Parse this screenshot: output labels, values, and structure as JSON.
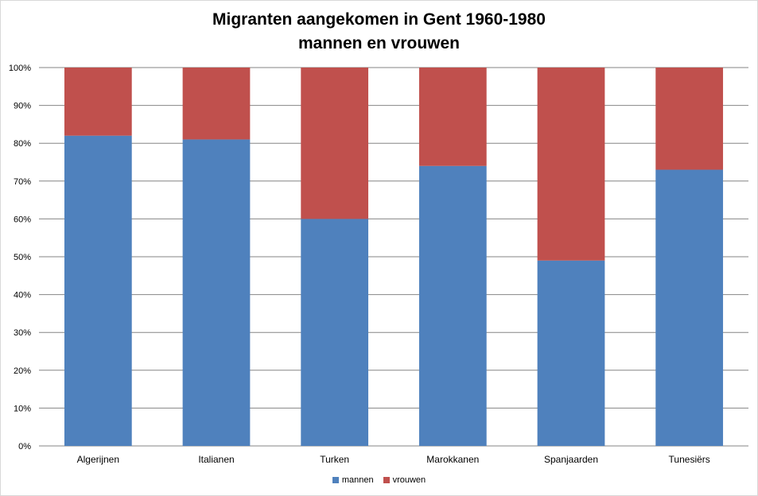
{
  "chart_data": {
    "type": "bar",
    "stacked": "percent",
    "title": "Migranten aangekomen in Gent 1960-1980",
    "subtitle": "mannen en vrouwen",
    "categories": [
      "Algerijnen",
      "Italianen",
      "Turken",
      "Marokkanen",
      "Spanjaarden",
      "Tunesiërs"
    ],
    "series": [
      {
        "name": "mannen",
        "color": "#4f81bd",
        "values": [
          82,
          81,
          60,
          74,
          49,
          73
        ]
      },
      {
        "name": "vrouwen",
        "color": "#c0504d",
        "values": [
          18,
          19,
          40,
          26,
          51,
          27
        ]
      }
    ],
    "y_ticks": [
      "0%",
      "10%",
      "20%",
      "30%",
      "40%",
      "50%",
      "60%",
      "70%",
      "80%",
      "90%",
      "100%"
    ],
    "ylim": [
      0,
      100
    ],
    "grid": true,
    "legend_position": "bottom"
  }
}
